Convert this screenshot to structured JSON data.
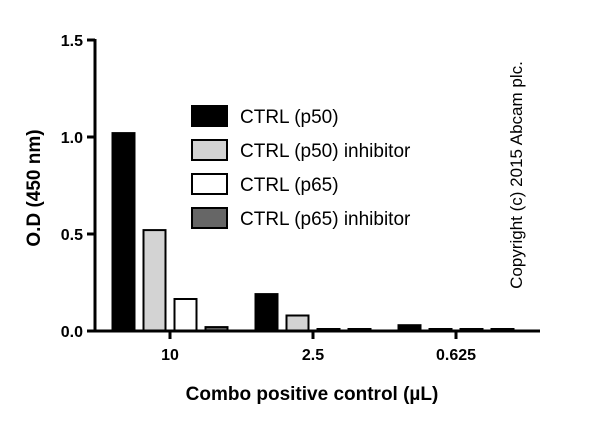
{
  "chart_data": {
    "type": "bar",
    "categories": [
      "10",
      "2.5",
      "0.625"
    ],
    "series": [
      {
        "name": "CTRL (p50)",
        "values": [
          1.02,
          0.19,
          0.03
        ],
        "color": "#000000"
      },
      {
        "name": "CTRL (p50) inhibitor",
        "values": [
          0.52,
          0.08,
          0.01
        ],
        "color": "#d3d3d3"
      },
      {
        "name": "CTRL (p65)",
        "values": [
          0.165,
          0.01,
          0.005
        ],
        "color": "#ffffff"
      },
      {
        "name": "CTRL (p65) inhibitor",
        "values": [
          0.02,
          0.005,
          0.005
        ],
        "color": "#666666"
      }
    ],
    "xlabel": "Combo positive control (µL)",
    "ylabel": "O.D (450 nm)",
    "ylim": [
      0,
      1.5
    ],
    "yticks": [
      0,
      0.5,
      1.0,
      1.5
    ],
    "ytick_labels": [
      "0.0",
      "0.5",
      "1.0",
      "1.5"
    ],
    "grid": false,
    "legend_position": "top-right",
    "annotation": "Copyright (c) 2015 Abcam plc."
  }
}
